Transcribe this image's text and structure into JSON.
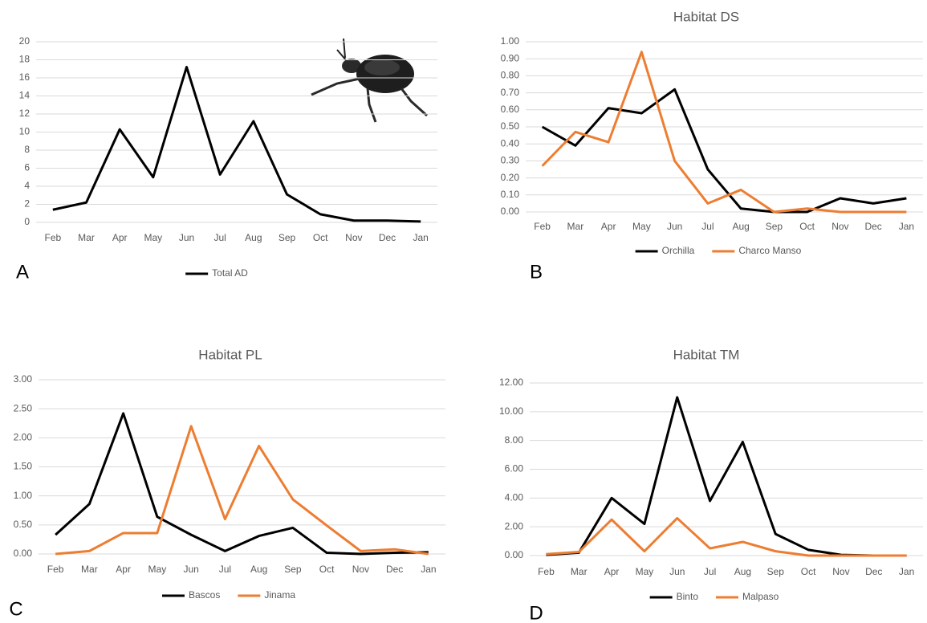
{
  "chart_data": [
    {
      "type": "line",
      "label": "A",
      "categories": [
        "Feb",
        "Mar",
        "Apr",
        "May",
        "Jun",
        "Jul",
        "Aug",
        "Sep",
        "Oct",
        "Nov",
        "Dec",
        "Jan"
      ],
      "series": [
        {
          "name": "Total AD",
          "color": "#000000",
          "values": [
            1.4,
            2.2,
            10.3,
            5.0,
            17.2,
            5.3,
            11.2,
            3.1,
            0.9,
            0.2,
            0.2,
            0.1
          ]
        }
      ],
      "ylim": [
        0,
        20
      ],
      "yticks": [
        0,
        2,
        4,
        6,
        8,
        10,
        12,
        14,
        16,
        18,
        20
      ],
      "grid": true,
      "legend": "bottom"
    },
    {
      "type": "line",
      "label": "B",
      "title": "Habitat DS",
      "categories": [
        "Feb",
        "Mar",
        "Apr",
        "May",
        "Jun",
        "Jul",
        "Aug",
        "Sep",
        "Oct",
        "Nov",
        "Dec",
        "Jan"
      ],
      "series": [
        {
          "name": "Orchilla",
          "color": "#000000",
          "values": [
            0.5,
            0.39,
            0.61,
            0.58,
            0.72,
            0.25,
            0.02,
            0.0,
            0.0,
            0.08,
            0.05,
            0.08
          ]
        },
        {
          "name": "Charco Manso",
          "color": "#ed7d31",
          "values": [
            0.27,
            0.47,
            0.41,
            0.94,
            0.3,
            0.05,
            0.13,
            0.0,
            0.02,
            0.0,
            0.0,
            0.0
          ]
        }
      ],
      "ylim": [
        0,
        1
      ],
      "yticks": [
        {
          "value": 0,
          "label": "0.00"
        },
        {
          "value": 0.1,
          "label": "0.10"
        },
        {
          "value": 0.2,
          "label": "0.20"
        },
        {
          "value": 0.3,
          "label": "0.30"
        },
        {
          "value": 0.4,
          "label": "0.40"
        },
        {
          "value": 0.5,
          "label": "0.50"
        },
        {
          "value": 0.6,
          "label": "0.60"
        },
        {
          "value": 0.7,
          "label": "0.70"
        },
        {
          "value": 0.8,
          "label": "0.80"
        },
        {
          "value": 0.9,
          "label": "0.90"
        },
        {
          "value": 1,
          "label": "1.00"
        }
      ],
      "grid": true,
      "legend": "bottom"
    },
    {
      "type": "line",
      "label": "C",
      "title": "Habitat PL",
      "categories": [
        "Feb",
        "Mar",
        "Apr",
        "May",
        "Jun",
        "Jul",
        "Aug",
        "Sep",
        "Oct",
        "Nov",
        "Dec",
        "Jan"
      ],
      "series": [
        {
          "name": "Bascos",
          "color": "#000000",
          "values": [
            0.33,
            0.86,
            2.42,
            0.64,
            0.33,
            0.05,
            0.31,
            0.45,
            0.02,
            0.0,
            0.02,
            0.03
          ]
        },
        {
          "name": "Jinama",
          "color": "#ed7d31",
          "values": [
            0.0,
            0.05,
            0.36,
            0.36,
            2.2,
            0.6,
            1.86,
            0.94,
            0.49,
            0.05,
            0.08,
            0.0
          ]
        }
      ],
      "ylim": [
        0,
        3
      ],
      "yticks": [
        {
          "value": 0,
          "label": "0.00"
        },
        {
          "value": 0.5,
          "label": "0.50"
        },
        {
          "value": 1,
          "label": "1.00"
        },
        {
          "value": 1.5,
          "label": "1.50"
        },
        {
          "value": 2,
          "label": "2.00"
        },
        {
          "value": 2.5,
          "label": "2.50"
        },
        {
          "value": 3,
          "label": "3.00"
        }
      ],
      "grid": true,
      "legend": "bottom"
    },
    {
      "type": "line",
      "label": "D",
      "title": "Habitat TM",
      "categories": [
        "Feb",
        "Mar",
        "Apr",
        "May",
        "Jun",
        "Jul",
        "Aug",
        "Sep",
        "Oct",
        "Nov",
        "Dec",
        "Jan"
      ],
      "series": [
        {
          "name": "Binto",
          "color": "#000000",
          "values": [
            0.05,
            0.2,
            4.0,
            2.2,
            11.0,
            3.8,
            7.9,
            1.5,
            0.4,
            0.05,
            0.0,
            0.0
          ]
        },
        {
          "name": "Malpaso",
          "color": "#ed7d31",
          "values": [
            0.1,
            0.25,
            2.5,
            0.3,
            2.6,
            0.5,
            0.95,
            0.3,
            0.0,
            0.0,
            0.0,
            0.0
          ]
        }
      ],
      "ylim": [
        0,
        12
      ],
      "yticks": [
        {
          "value": 0,
          "label": "0.00"
        },
        {
          "value": 2,
          "label": "2.00"
        },
        {
          "value": 4,
          "label": "4.00"
        },
        {
          "value": 6,
          "label": "6.00"
        },
        {
          "value": 8,
          "label": "8.00"
        },
        {
          "value": 10,
          "label": "10.00"
        },
        {
          "value": 12,
          "label": "12.00"
        }
      ],
      "grid": true,
      "legend": "bottom"
    }
  ]
}
